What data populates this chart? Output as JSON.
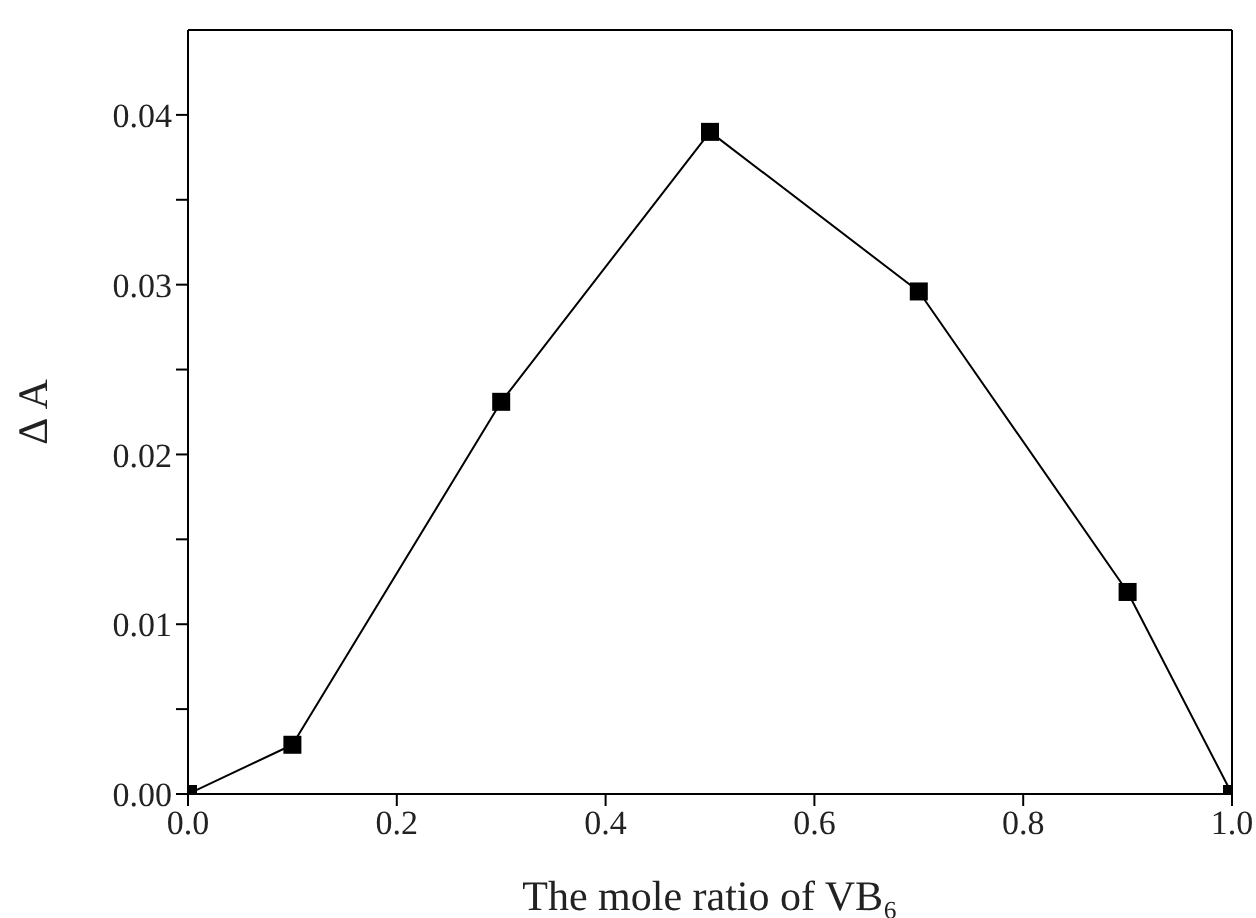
{
  "chart_data": {
    "type": "line",
    "xlabel": "The mole ratio of VB₆",
    "ylabel": "Δ A",
    "x": [
      0,
      0.1,
      0.3,
      0.5,
      0.7,
      0.9,
      1.0
    ],
    "series": [
      {
        "color": "#000000",
        "values": [
          0,
          0.0029,
          0.0231,
          0.039,
          0.0296,
          0.0119,
          0
        ]
      }
    ],
    "xlim": [
      0,
      1.0
    ],
    "xticks": [
      {
        "value": 0,
        "label": "0.0"
      },
      0.2,
      0.4,
      0.6,
      0.8,
      {
        "value": 1,
        "label": "1.0"
      }
    ],
    "ylim": [
      0,
      0.045
    ],
    "yticks": [
      {
        "value": 0,
        "label": "0.00"
      },
      {
        "value": 0.005,
        "label": null
      },
      {
        "value": 0.01,
        "label": "0.01"
      },
      {
        "value": 0.015,
        "label": null
      },
      {
        "value": 0.02,
        "label": "0.02"
      },
      {
        "value": 0.025,
        "label": null
      },
      {
        "value": 0.03,
        "label": "0.03"
      },
      {
        "value": 0.035,
        "label": null
      },
      {
        "value": 0.04,
        "label": "0.04"
      }
    ],
    "marker": "square",
    "line_style": "solid",
    "grid": false,
    "legend": false
  }
}
